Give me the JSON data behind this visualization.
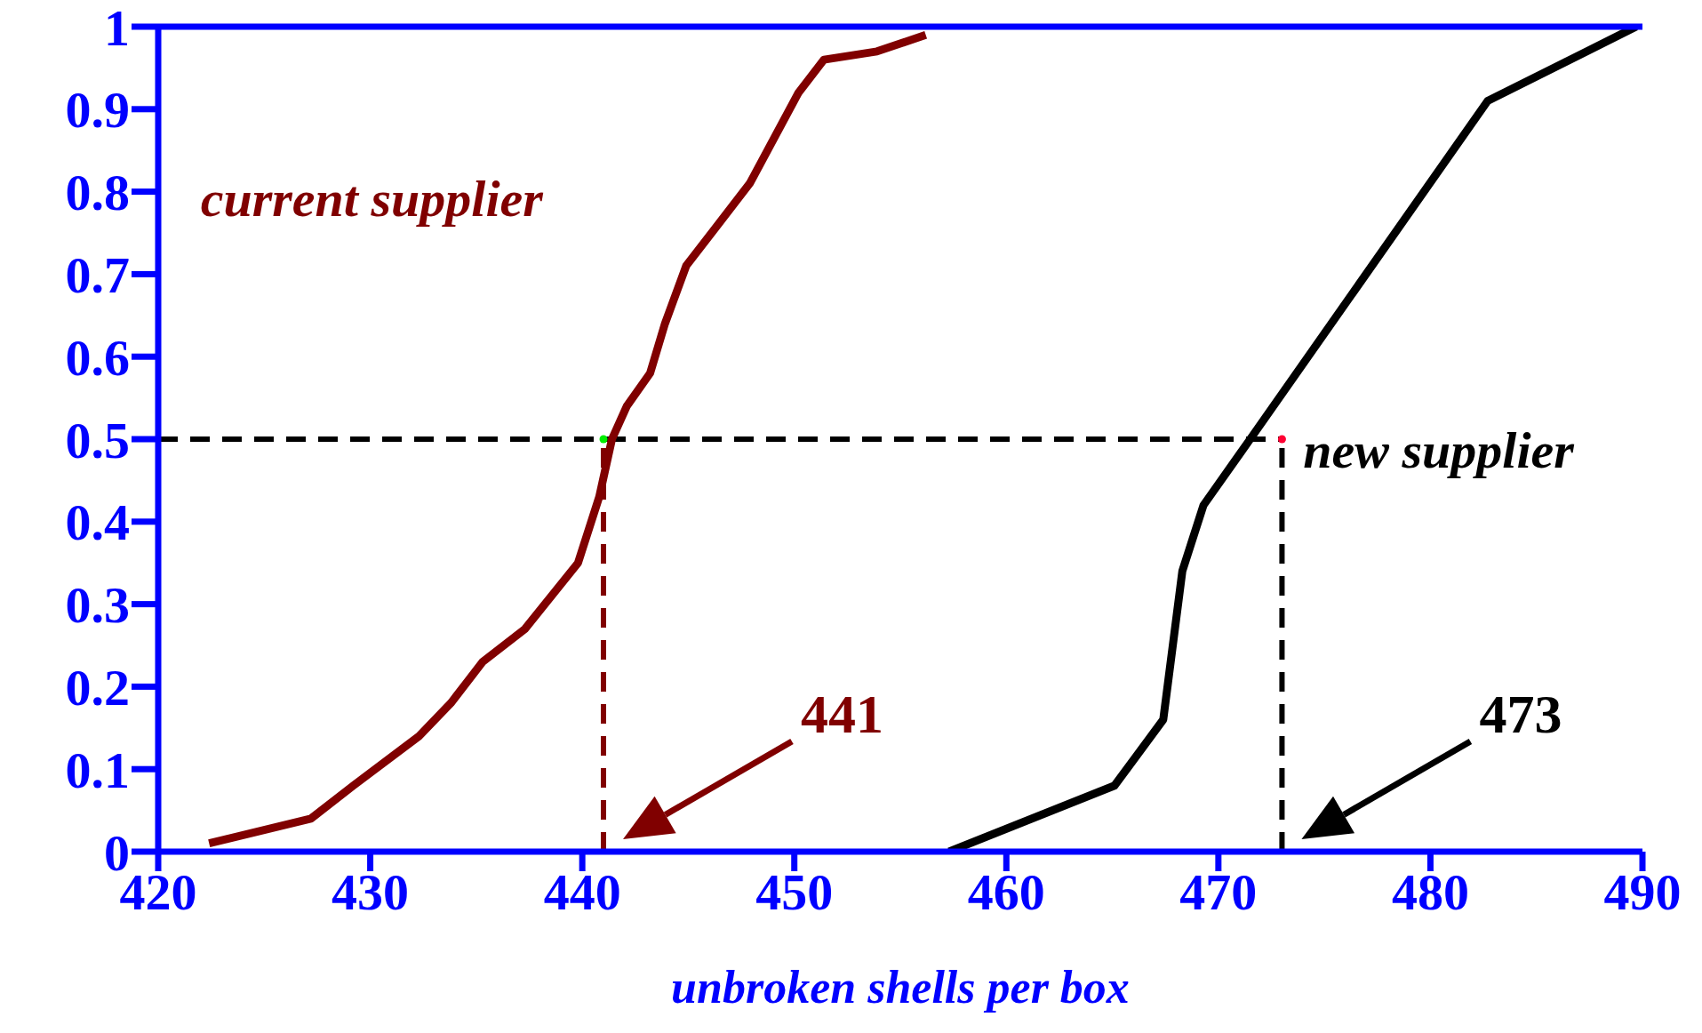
{
  "chart_data": {
    "type": "line",
    "xlabel": "unbroken shells per box",
    "xlim": [
      420,
      490
    ],
    "xticks": [
      420,
      430,
      440,
      450,
      460,
      470,
      480,
      490
    ],
    "ylim": [
      0,
      1
    ],
    "yticks": [
      0,
      0.1,
      0.2,
      0.3,
      0.4,
      0.5,
      0.6,
      0.7,
      0.8,
      0.9,
      1
    ],
    "series": [
      {
        "name": "current supplier",
        "color": "#800000",
        "x": [
          422.4,
          427.2,
          429.2,
          432.3,
          433.8,
          435.3,
          437.3,
          439.8,
          440.8,
          441.4,
          442.1,
          443.2,
          443.9,
          444.9,
          447.9,
          450.2,
          451.4,
          453.9,
          456.2
        ],
        "values": [
          0.01,
          0.04,
          0.08,
          0.14,
          0.18,
          0.23,
          0.27,
          0.35,
          0.43,
          0.5,
          0.54,
          0.58,
          0.64,
          0.71,
          0.81,
          0.92,
          0.96,
          0.97,
          0.99
        ]
      },
      {
        "name": "new supplier",
        "color": "#000000",
        "x": [
          457.3,
          465.1,
          467.4,
          468.3,
          469.3,
          471.5,
          482.7,
          489.7
        ],
        "values": [
          0,
          0.08,
          0.16,
          0.34,
          0.42,
          0.5,
          0.91,
          1
        ]
      },
      {
        "type": "scatter",
        "color": "#00ee00",
        "marker": "circle",
        "x": [
          441
        ],
        "values": [
          0.5
        ]
      },
      {
        "type": "scatter",
        "color": "#ff0033",
        "marker": "circle",
        "x": [
          473
        ],
        "values": [
          0.5
        ]
      }
    ],
    "ref_lines": [
      {
        "axis": "x",
        "value": 441,
        "color": "#800000",
        "line_style": "dashed"
      },
      {
        "axis": "x",
        "value": 473,
        "color": "#000000",
        "line_style": "dashed"
      },
      {
        "axis": "y",
        "value": 0.5,
        "color": "#000000",
        "line_style": "dashed"
      }
    ],
    "annotations": [
      "441",
      "473"
    ],
    "grid": false,
    "legend": false,
    "marker": "none",
    "line_style": "solid"
  }
}
